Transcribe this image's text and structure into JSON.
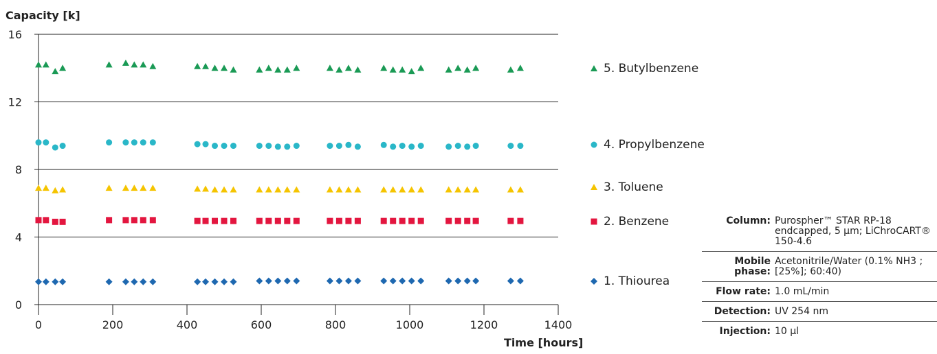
{
  "chart_data": {
    "type": "scatter",
    "title": "",
    "xlabel": "Time [hours]",
    "ylabel": "Capacity [k]",
    "xlim": [
      0,
      1400
    ],
    "ylim": [
      0,
      16
    ],
    "xticks": [
      "0",
      "200",
      "400",
      "600",
      "800",
      "1000",
      "1200",
      "1400"
    ],
    "yticks": [
      "0",
      "4",
      "8",
      "12",
      "16"
    ],
    "grid": "horizontal",
    "legend_position": "right",
    "series": [
      {
        "name": "5. Butylbenzene",
        "marker": "triangle",
        "color": "#1a9a55",
        "x": [
          0,
          20,
          45,
          65,
          190,
          235,
          258,
          282,
          308,
          428,
          450,
          475,
          500,
          525,
          595,
          620,
          645,
          670,
          695,
          785,
          810,
          835,
          860,
          930,
          955,
          980,
          1005,
          1030,
          1105,
          1130,
          1155,
          1178,
          1272,
          1298
        ],
        "y": [
          14.2,
          14.2,
          13.8,
          14.0,
          14.2,
          14.3,
          14.2,
          14.2,
          14.1,
          14.1,
          14.1,
          14.0,
          14.0,
          13.9,
          13.9,
          14.0,
          13.9,
          13.9,
          14.0,
          14.0,
          13.9,
          14.0,
          13.9,
          14.0,
          13.9,
          13.9,
          13.8,
          14.0,
          13.9,
          14.0,
          13.9,
          14.0,
          13.9,
          14.0
        ]
      },
      {
        "name": "4. Propylbenzene",
        "marker": "circle",
        "color": "#2ab7c8",
        "x": [
          0,
          20,
          45,
          65,
          190,
          235,
          258,
          282,
          308,
          428,
          450,
          475,
          500,
          525,
          595,
          620,
          645,
          670,
          695,
          785,
          810,
          835,
          860,
          930,
          955,
          980,
          1005,
          1030,
          1105,
          1130,
          1155,
          1178,
          1272,
          1298
        ],
        "y": [
          9.6,
          9.6,
          9.3,
          9.4,
          9.6,
          9.6,
          9.6,
          9.6,
          9.6,
          9.5,
          9.5,
          9.4,
          9.4,
          9.4,
          9.4,
          9.4,
          9.35,
          9.35,
          9.4,
          9.4,
          9.4,
          9.45,
          9.35,
          9.45,
          9.35,
          9.4,
          9.35,
          9.4,
          9.35,
          9.4,
          9.35,
          9.4,
          9.4,
          9.4
        ]
      },
      {
        "name": "3. Toluene",
        "marker": "triangle",
        "color": "#f5c400",
        "x": [
          0,
          20,
          45,
          65,
          190,
          235,
          258,
          282,
          308,
          428,
          450,
          475,
          500,
          525,
          595,
          620,
          645,
          670,
          695,
          785,
          810,
          835,
          860,
          930,
          955,
          980,
          1005,
          1030,
          1105,
          1130,
          1155,
          1178,
          1272,
          1298
        ],
        "y": [
          6.9,
          6.9,
          6.75,
          6.8,
          6.9,
          6.9,
          6.9,
          6.9,
          6.9,
          6.85,
          6.85,
          6.8,
          6.8,
          6.8,
          6.8,
          6.8,
          6.8,
          6.8,
          6.8,
          6.8,
          6.8,
          6.8,
          6.8,
          6.8,
          6.8,
          6.8,
          6.8,
          6.8,
          6.8,
          6.8,
          6.8,
          6.8,
          6.8,
          6.8
        ]
      },
      {
        "name": "2. Benzene",
        "marker": "square",
        "color": "#e3163f",
        "x": [
          0,
          20,
          45,
          65,
          190,
          235,
          258,
          282,
          308,
          428,
          450,
          475,
          500,
          525,
          595,
          620,
          645,
          670,
          695,
          785,
          810,
          835,
          860,
          930,
          955,
          980,
          1005,
          1030,
          1105,
          1130,
          1155,
          1178,
          1272,
          1298
        ],
        "y": [
          5.0,
          5.0,
          4.9,
          4.9,
          5.0,
          5.0,
          5.0,
          5.0,
          5.0,
          4.95,
          4.95,
          4.95,
          4.95,
          4.95,
          4.95,
          4.95,
          4.95,
          4.95,
          4.95,
          4.95,
          4.95,
          4.95,
          4.95,
          4.95,
          4.95,
          4.95,
          4.95,
          4.95,
          4.95,
          4.95,
          4.95,
          4.95,
          4.95,
          4.95
        ]
      },
      {
        "name": "1. Thiourea",
        "marker": "diamond",
        "color": "#1e68b0",
        "x": [
          0,
          20,
          45,
          65,
          190,
          235,
          258,
          282,
          308,
          428,
          450,
          475,
          500,
          525,
          595,
          620,
          645,
          670,
          695,
          785,
          810,
          835,
          860,
          930,
          955,
          980,
          1005,
          1030,
          1105,
          1130,
          1155,
          1178,
          1272,
          1298
        ],
        "y": [
          1.35,
          1.35,
          1.35,
          1.35,
          1.35,
          1.35,
          1.35,
          1.35,
          1.35,
          1.35,
          1.35,
          1.35,
          1.35,
          1.35,
          1.4,
          1.4,
          1.4,
          1.4,
          1.4,
          1.4,
          1.4,
          1.4,
          1.4,
          1.4,
          1.4,
          1.4,
          1.4,
          1.4,
          1.4,
          1.4,
          1.4,
          1.4,
          1.4,
          1.4
        ]
      }
    ]
  },
  "info_table": [
    {
      "key": "Column:",
      "value": "Purospher™ STAR RP-18 endcapped, 5 µm; LiChroCART® 150-4.6"
    },
    {
      "key": "Mobile phase:",
      "value": "Acetonitrile/Water (0.1% NH3 ; [25%]; 60:40)"
    },
    {
      "key": "Flow rate:",
      "value": "1.0 mL/min"
    },
    {
      "key": "Detection:",
      "value": "UV 254 nm"
    },
    {
      "key": "Injection:",
      "value": "10 µl"
    }
  ]
}
